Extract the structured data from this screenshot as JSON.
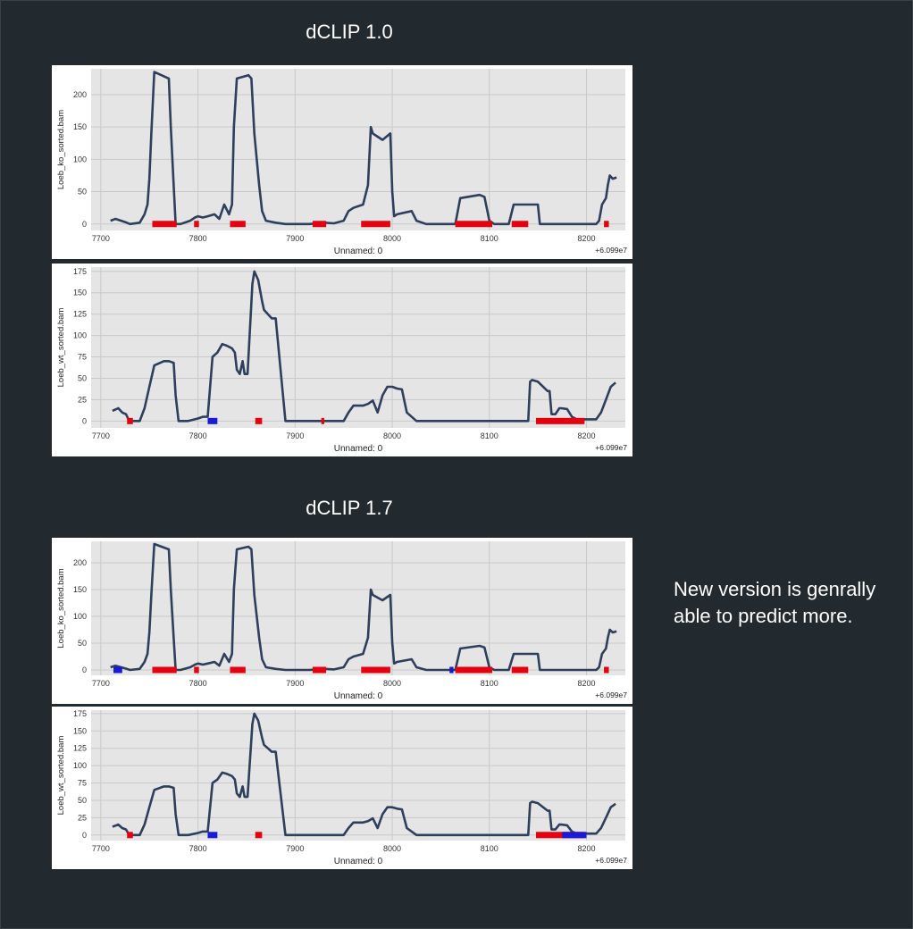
{
  "sections": [
    {
      "title": "dCLIP 1.0"
    },
    {
      "title": "dCLIP 1.7"
    }
  ],
  "note": {
    "line1": "New version is genrally",
    "line2": "able to predict more."
  },
  "chart_data": [
    {
      "type": "line",
      "section": "dCLIP 1.0",
      "xlabel": "Unnamed: 0",
      "ylabel": "Loeb_ko_sorted.bam",
      "offset_label": "+6.099e7",
      "xlim": [
        7690,
        8240
      ],
      "ylim": [
        -10,
        240
      ],
      "xticks": [
        7700,
        7800,
        7900,
        8000,
        8100,
        8200
      ],
      "yticks": [
        0,
        50,
        100,
        150,
        200
      ],
      "grid": true,
      "line_color": "#2e3f5c",
      "x": [
        7710,
        7715,
        7725,
        7730,
        7740,
        7745,
        7748,
        7750,
        7752,
        7755,
        7770,
        7772,
        7775,
        7777,
        7782,
        7792,
        7797,
        7800,
        7805,
        7810,
        7817,
        7822,
        7827,
        7832,
        7835,
        7837,
        7840,
        7852,
        7855,
        7858,
        7863,
        7866,
        7870,
        7880,
        7890,
        7900,
        7915,
        7930,
        7940,
        7950,
        7955,
        7960,
        7970,
        7975,
        7978,
        7980,
        7985,
        7990,
        7998,
        8000,
        8002,
        8005,
        8020,
        8025,
        8035,
        8065,
        8070,
        8090,
        8095,
        8100,
        8105,
        8120,
        8125,
        8150,
        8152,
        8155,
        8160,
        8170,
        8180,
        8200,
        8210,
        8213,
        8216,
        8220,
        8222,
        8224,
        8227,
        8231
      ],
      "y": [
        5,
        8,
        3,
        0,
        2,
        15,
        30,
        70,
        140,
        235,
        225,
        150,
        60,
        0,
        0,
        5,
        10,
        12,
        10,
        12,
        15,
        8,
        30,
        15,
        30,
        150,
        225,
        230,
        225,
        140,
        60,
        20,
        5,
        2,
        0,
        0,
        0,
        2,
        1,
        5,
        20,
        25,
        30,
        60,
        150,
        140,
        135,
        130,
        140,
        50,
        12,
        15,
        20,
        5,
        0,
        0,
        40,
        45,
        42,
        5,
        0,
        0,
        30,
        30,
        0,
        0,
        0,
        0,
        0,
        0,
        0,
        5,
        30,
        40,
        60,
        75,
        70,
        72
      ],
      "red_segments": [
        [
          7753,
          7778
        ],
        [
          7796,
          7801
        ],
        [
          7833,
          7849
        ],
        [
          7918,
          7932
        ],
        [
          7968,
          7998
        ],
        [
          8065,
          8103
        ],
        [
          8123,
          8140
        ],
        [
          8218,
          8223
        ]
      ],
      "blue_segments": []
    },
    {
      "type": "line",
      "section": "dCLIP 1.0",
      "xlabel": "Unnamed: 0",
      "ylabel": "Loeb_wt_sorted.bam",
      "offset_label": "+6.099e7",
      "xlim": [
        7690,
        8240
      ],
      "ylim": [
        -8,
        180
      ],
      "xticks": [
        7700,
        7800,
        7900,
        8000,
        8100,
        8200
      ],
      "yticks": [
        0,
        25,
        50,
        75,
        100,
        125,
        150,
        175
      ],
      "grid": true,
      "line_color": "#2e3f5c",
      "x": [
        7712,
        7718,
        7722,
        7726,
        7728,
        7730,
        7740,
        7745,
        7750,
        7755,
        7765,
        7770,
        7775,
        7777,
        7780,
        7790,
        7800,
        7805,
        7810,
        7815,
        7820,
        7825,
        7830,
        7835,
        7838,
        7840,
        7843,
        7846,
        7848,
        7851,
        7856,
        7858,
        7862,
        7866,
        7868,
        7872,
        7876,
        7880,
        7890,
        7900,
        7920,
        7950,
        7955,
        7960,
        7970,
        7975,
        7980,
        7985,
        7990,
        7995,
        8000,
        8005,
        8010,
        8015,
        8025,
        8030,
        8040,
        8060,
        8080,
        8120,
        8140,
        8142,
        8144,
        8150,
        8160,
        8162,
        8164,
        8168,
        8172,
        8174,
        8180,
        8185,
        8190,
        8200,
        8210,
        8215,
        8220,
        8225,
        8230
      ],
      "y": [
        12,
        15,
        10,
        8,
        3,
        0,
        0,
        15,
        40,
        65,
        70,
        70,
        68,
        30,
        0,
        0,
        3,
        5,
        5,
        75,
        80,
        90,
        88,
        85,
        80,
        60,
        55,
        70,
        55,
        55,
        160,
        175,
        165,
        140,
        130,
        125,
        120,
        120,
        0,
        0,
        0,
        0,
        10,
        18,
        18,
        20,
        24,
        10,
        30,
        40,
        40,
        38,
        37,
        10,
        0,
        0,
        0,
        0,
        0,
        0,
        0,
        46,
        48,
        46,
        35,
        35,
        8,
        8,
        15,
        15,
        14,
        5,
        2,
        2,
        2,
        10,
        25,
        40,
        45
      ],
      "red_segments": [
        [
          7727,
          7733
        ],
        [
          7859,
          7866
        ],
        [
          7927,
          7930
        ],
        [
          8148,
          8198
        ]
      ],
      "blue_segments": [
        [
          7810,
          7820
        ]
      ]
    },
    {
      "type": "line",
      "section": "dCLIP 1.7",
      "xlabel": "Unnamed: 0",
      "ylabel": "Loeb_ko_sorted.bam",
      "offset_label": "+6.099e7",
      "xlim": [
        7690,
        8240
      ],
      "ylim": [
        -10,
        240
      ],
      "xticks": [
        7700,
        7800,
        7900,
        8000,
        8100,
        8200
      ],
      "yticks": [
        0,
        50,
        100,
        150,
        200
      ],
      "grid": true,
      "line_color": "#2e3f5c",
      "x": [
        7710,
        7715,
        7725,
        7730,
        7740,
        7745,
        7748,
        7750,
        7752,
        7755,
        7770,
        7772,
        7775,
        7777,
        7782,
        7792,
        7797,
        7800,
        7805,
        7810,
        7817,
        7822,
        7827,
        7832,
        7835,
        7837,
        7840,
        7852,
        7855,
        7858,
        7863,
        7866,
        7870,
        7880,
        7890,
        7900,
        7915,
        7930,
        7940,
        7950,
        7955,
        7960,
        7970,
        7975,
        7978,
        7980,
        7985,
        7990,
        7998,
        8000,
        8002,
        8005,
        8020,
        8025,
        8035,
        8065,
        8070,
        8090,
        8095,
        8100,
        8105,
        8120,
        8125,
        8150,
        8152,
        8155,
        8160,
        8170,
        8180,
        8200,
        8210,
        8213,
        8216,
        8220,
        8222,
        8224,
        8227,
        8231
      ],
      "y": [
        5,
        8,
        3,
        0,
        2,
        15,
        30,
        70,
        140,
        235,
        225,
        150,
        60,
        0,
        0,
        5,
        10,
        12,
        10,
        12,
        15,
        8,
        30,
        15,
        30,
        150,
        225,
        230,
        225,
        140,
        60,
        20,
        5,
        2,
        0,
        0,
        0,
        2,
        1,
        5,
        20,
        25,
        30,
        60,
        150,
        140,
        135,
        130,
        140,
        50,
        12,
        15,
        20,
        5,
        0,
        0,
        40,
        45,
        42,
        5,
        0,
        0,
        30,
        30,
        0,
        0,
        0,
        0,
        0,
        0,
        0,
        5,
        30,
        40,
        60,
        75,
        70,
        72
      ],
      "red_segments": [
        [
          7753,
          7778
        ],
        [
          7796,
          7801
        ],
        [
          7833,
          7849
        ],
        [
          7918,
          7932
        ],
        [
          7968,
          7998
        ],
        [
          8065,
          8103
        ],
        [
          8123,
          8140
        ],
        [
          8218,
          8223
        ]
      ],
      "blue_segments": [
        [
          7713,
          7722
        ],
        [
          8059,
          8063
        ]
      ]
    },
    {
      "type": "line",
      "section": "dCLIP 1.7",
      "xlabel": "Unnamed: 0",
      "ylabel": "Loeb_wt_sorted.bam",
      "offset_label": "+6.099e7",
      "xlim": [
        7690,
        8240
      ],
      "ylim": [
        -8,
        180
      ],
      "xticks": [
        7700,
        7800,
        7900,
        8000,
        8100,
        8200
      ],
      "yticks": [
        0,
        25,
        50,
        75,
        100,
        125,
        150,
        175
      ],
      "grid": true,
      "line_color": "#2e3f5c",
      "x": [
        7712,
        7718,
        7722,
        7726,
        7728,
        7730,
        7740,
        7745,
        7750,
        7755,
        7765,
        7770,
        7775,
        7777,
        7780,
        7790,
        7800,
        7805,
        7810,
        7815,
        7820,
        7825,
        7830,
        7835,
        7838,
        7840,
        7843,
        7846,
        7848,
        7851,
        7856,
        7858,
        7862,
        7866,
        7868,
        7872,
        7876,
        7880,
        7890,
        7900,
        7920,
        7950,
        7955,
        7960,
        7970,
        7975,
        7980,
        7985,
        7990,
        7995,
        8000,
        8005,
        8010,
        8015,
        8025,
        8030,
        8040,
        8060,
        8080,
        8120,
        8140,
        8142,
        8144,
        8150,
        8160,
        8162,
        8164,
        8168,
        8172,
        8174,
        8180,
        8185,
        8190,
        8200,
        8210,
        8215,
        8220,
        8225,
        8230
      ],
      "y": [
        12,
        15,
        10,
        8,
        3,
        0,
        0,
        15,
        40,
        65,
        70,
        70,
        68,
        30,
        0,
        0,
        3,
        5,
        5,
        75,
        80,
        90,
        88,
        85,
        80,
        60,
        55,
        70,
        55,
        55,
        160,
        175,
        165,
        140,
        130,
        125,
        120,
        120,
        0,
        0,
        0,
        0,
        10,
        18,
        18,
        20,
        24,
        10,
        30,
        40,
        40,
        38,
        37,
        10,
        0,
        0,
        0,
        0,
        0,
        0,
        0,
        46,
        48,
        46,
        35,
        35,
        8,
        8,
        15,
        15,
        14,
        5,
        2,
        2,
        2,
        10,
        25,
        40,
        45
      ],
      "red_segments": [
        [
          7727,
          7733
        ],
        [
          7859,
          7866
        ],
        [
          8148,
          8198
        ]
      ],
      "blue_segments": [
        [
          7810,
          7820
        ],
        [
          8175,
          8200
        ]
      ]
    }
  ]
}
